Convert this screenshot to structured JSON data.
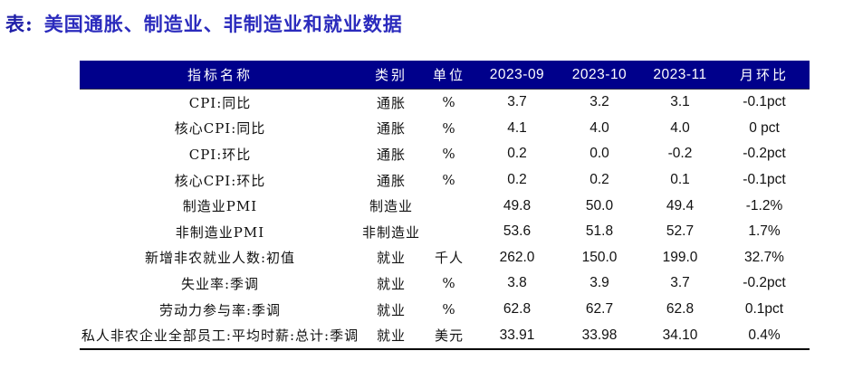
{
  "page": {
    "title_label": "表:",
    "title_text": "美国通胀、制造业、非制造业和就业数据"
  },
  "colors": {
    "header_bg": "#00008B",
    "header_text": "#FFFFFF",
    "title_label_color": "#1F1FA8",
    "title_color": "#2B2BBD",
    "body_text": "#111111"
  },
  "table": {
    "columns": [
      "指标名称",
      "类别",
      "单位",
      "2023-09",
      "2023-10",
      "2023-11",
      "月环比"
    ],
    "rows": [
      [
        "CPI:同比",
        "通胀",
        "%",
        "3.7",
        "3.2",
        "3.1",
        "-0.1pct"
      ],
      [
        "核心CPI:同比",
        "通胀",
        "%",
        "4.1",
        "4.0",
        "4.0",
        "0 pct"
      ],
      [
        "CPI:环比",
        "通胀",
        "%",
        "0.2",
        "0.0",
        "-0.2",
        "-0.2pct"
      ],
      [
        "核心CPI:环比",
        "通胀",
        "%",
        "0.2",
        "0.2",
        "0.1",
        "-0.1pct"
      ],
      [
        "制造业PMI",
        "制造业",
        "",
        "49.8",
        "50.0",
        "49.4",
        "-1.2%"
      ],
      [
        "非制造业PMI",
        "非制造业",
        "",
        "53.6",
        "51.8",
        "52.7",
        "1.7%"
      ],
      [
        "新增非农就业人数:初值",
        "就业",
        "千人",
        "262.0",
        "150.0",
        "199.0",
        "32.7%"
      ],
      [
        "失业率:季调",
        "就业",
        "%",
        "3.8",
        "3.9",
        "3.7",
        "-0.2pct"
      ],
      [
        "劳动力参与率:季调",
        "就业",
        "%",
        "62.8",
        "62.7",
        "62.8",
        "0.1pct"
      ],
      [
        "私人非农企业全部员工:平均时薪:总计:季调",
        "就业",
        "美元",
        "33.91",
        "33.98",
        "34.10",
        "0.4%"
      ]
    ]
  }
}
